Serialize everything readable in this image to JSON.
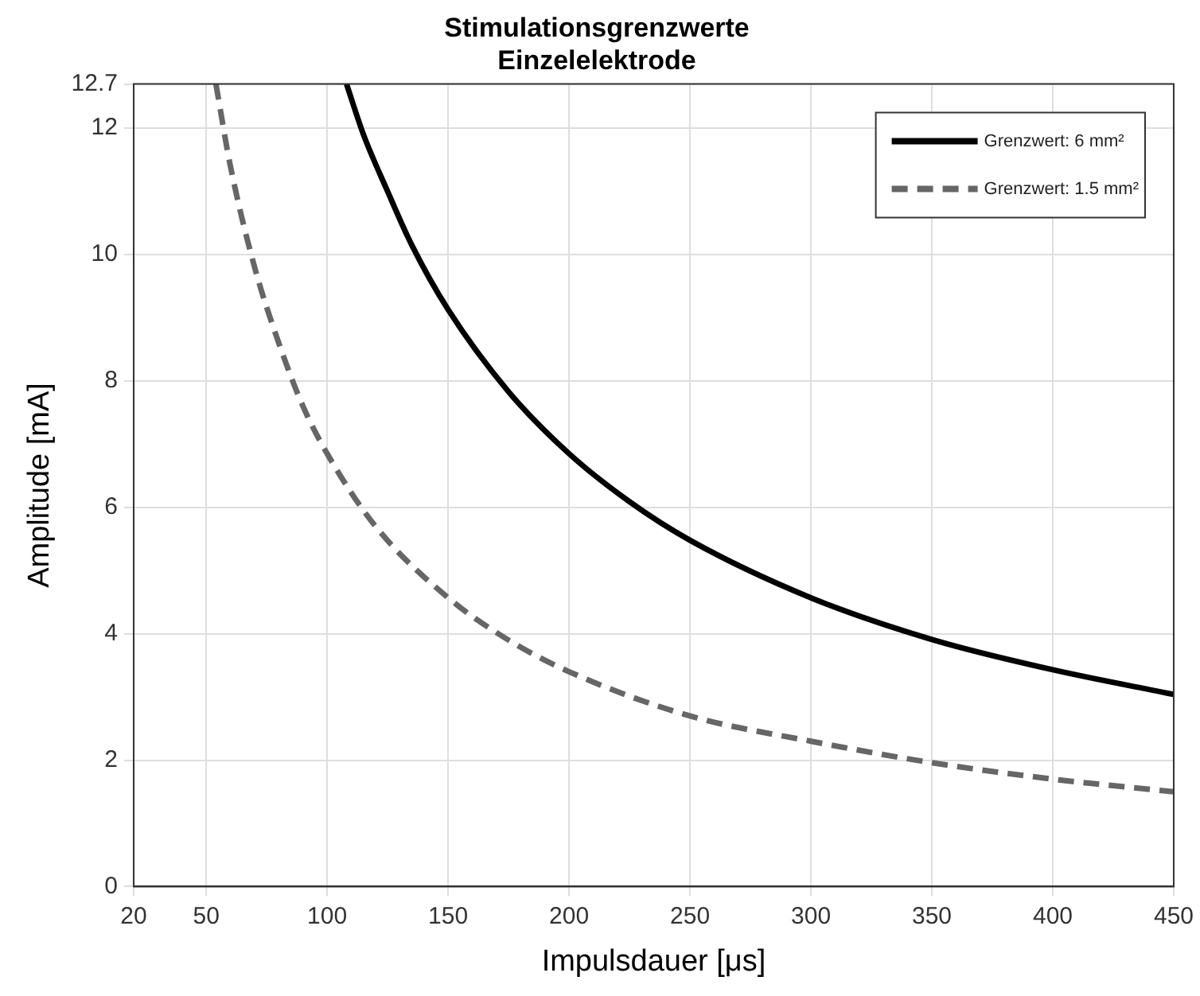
{
  "chart_data": {
    "type": "line",
    "title": "Stimulationsgrenzwerte\nEinzelelektrode",
    "xlabel": "Impulsdauer [μs]",
    "ylabel": "Amplitude [mA]",
    "xlim": [
      20,
      450
    ],
    "xticks": [
      20,
      50,
      100,
      150,
      200,
      250,
      300,
      350,
      400,
      450
    ],
    "ylim": [
      0,
      12.7
    ],
    "yticks": [
      0,
      2,
      4,
      6,
      8,
      10,
      12,
      12.7
    ],
    "grid": true,
    "legend": "top right",
    "marker": "none",
    "series": [
      {
        "name": "Grenzwert: 6 mm²",
        "color": "#000000",
        "line_style": "solid",
        "x": [
          108,
          115,
          125,
          135,
          150,
          175,
          200,
          225,
          250,
          300,
          350,
          400,
          450
        ],
        "values": [
          12.7,
          11.9,
          11.0,
          10.15,
          9.13,
          7.83,
          6.85,
          6.09,
          5.48,
          4.57,
          3.91,
          3.43,
          3.04
        ]
      },
      {
        "name": "Grenzwert: 1.5 mm²",
        "color": "#666666",
        "line_style": "dashed",
        "x": [
          54,
          60,
          70,
          80,
          90,
          100,
          120,
          150,
          175,
          200,
          250,
          300,
          350,
          400,
          450
        ],
        "values": [
          12.7,
          11.4,
          9.8,
          8.6,
          7.6,
          6.85,
          5.7,
          4.57,
          3.9,
          3.4,
          2.7,
          2.3,
          1.96,
          1.7,
          1.5
        ]
      }
    ]
  }
}
